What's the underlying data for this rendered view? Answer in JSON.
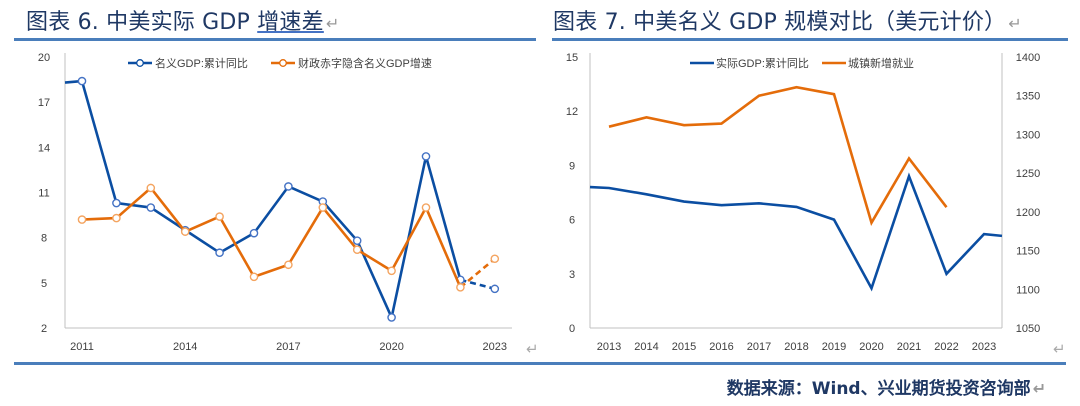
{
  "figures": {
    "left_title_prefix": "图表 6. 中美实际 GDP ",
    "left_title_underlined": "增速差",
    "right_title": "图表 7. 中美名义 GDP 规模对比（美元计价）",
    "paragraph_mark": "↵"
  },
  "source": "数据来源：Wind、兴业期货投资咨询部",
  "colors": {
    "blue": "#0b4ea2",
    "orange": "#e46c0a",
    "rule": "#4a7ebb",
    "title": "#1f3864"
  },
  "chart_data": [
    {
      "type": "line",
      "title": "",
      "xlabel": "",
      "ylabel": "",
      "x": [
        2010,
        2011,
        2012,
        2013,
        2014,
        2015,
        2016,
        2017,
        2018,
        2019,
        2020,
        2021,
        2022,
        2023
      ],
      "xlim": [
        2010.5,
        2023.4
      ],
      "ylim": [
        2,
        20
      ],
      "yticks": [
        2,
        5,
        8,
        11,
        14,
        17,
        20
      ],
      "xticks": [
        2011,
        2014,
        2017,
        2020,
        2023
      ],
      "grid": false,
      "legend": "top-center",
      "markers": true,
      "dashed_last_segment": true,
      "series": [
        {
          "name": "名义GDP:累计同比",
          "color": "#0b4ea2",
          "values": [
            18.3,
            18.4,
            10.3,
            10.0,
            8.5,
            7.0,
            8.3,
            11.4,
            10.4,
            7.8,
            2.7,
            13.4,
            5.2,
            4.6
          ]
        },
        {
          "name": "财政赤字隐含名义GDP增速",
          "color": "#e46c0a",
          "values": [
            null,
            9.2,
            9.3,
            11.3,
            8.4,
            9.4,
            5.4,
            6.2,
            10.0,
            7.2,
            5.8,
            10.0,
            4.7,
            6.6
          ]
        }
      ]
    },
    {
      "type": "line",
      "title": "",
      "xlabel": "",
      "ylabel": "",
      "x": [
        2012.5,
        2013,
        2014,
        2015,
        2016,
        2017,
        2018,
        2019,
        2020,
        2021,
        2022,
        2023,
        2023.5
      ],
      "xticks": [
        2013,
        2014,
        2015,
        2016,
        2017,
        2018,
        2019,
        2020,
        2021,
        2022,
        2023
      ],
      "ylim": [
        0,
        15
      ],
      "yticks": [
        0,
        3,
        6,
        9,
        12,
        15
      ],
      "y2lim": [
        1050,
        1400
      ],
      "y2ticks": [
        1050,
        1100,
        1150,
        1200,
        1250,
        1300,
        1350,
        1400
      ],
      "grid": false,
      "legend": "top-center",
      "markers": false,
      "series": [
        {
          "name": "实际GDP:累计同比",
          "color": "#0b4ea2",
          "axis": "left",
          "values": [
            7.8,
            7.75,
            7.4,
            7.0,
            6.8,
            6.9,
            6.7,
            6.0,
            2.2,
            8.4,
            3.0,
            5.2,
            5.1
          ]
        },
        {
          "name": "城镇新增就业",
          "color": "#e46c0a",
          "axis": "right",
          "values": [
            null,
            1310,
            1322,
            1312,
            1314,
            1350,
            1361,
            1352,
            1186,
            1269,
            1206,
            null,
            null
          ]
        }
      ]
    }
  ]
}
